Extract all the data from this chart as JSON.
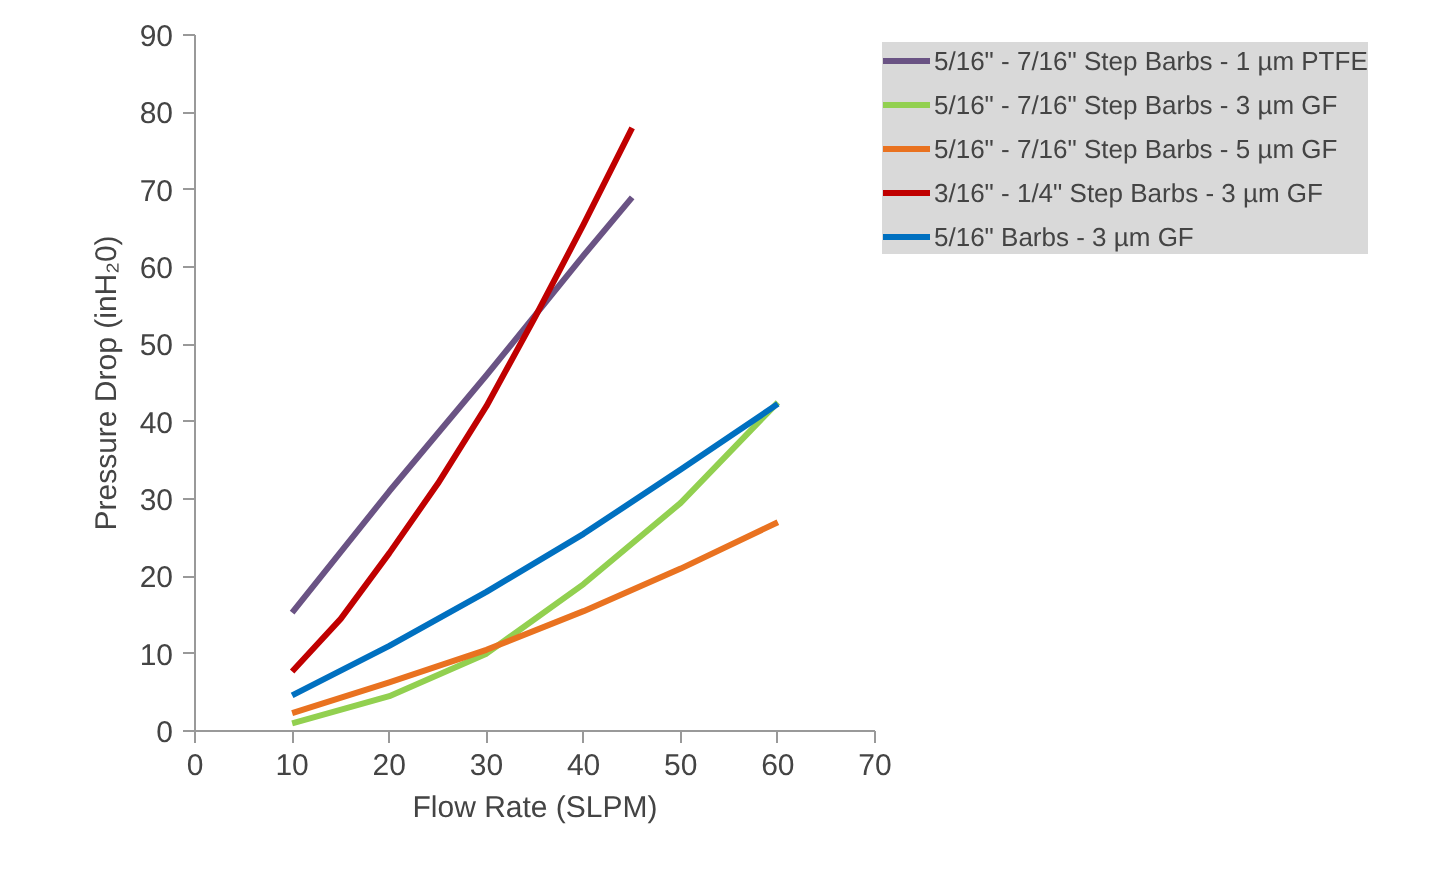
{
  "chart_data": {
    "type": "line",
    "xlabel": "Flow Rate (SLPM)",
    "ylabel": "Pressure Drop (inH₂0)",
    "xlim": [
      0,
      70
    ],
    "ylim": [
      0,
      90
    ],
    "xticks": [
      0,
      10,
      20,
      30,
      40,
      50,
      60,
      70
    ],
    "yticks": [
      0,
      10,
      20,
      30,
      40,
      50,
      60,
      70,
      80,
      90
    ],
    "grid": false,
    "legend": "top right",
    "marker": "none",
    "line_style": "solid",
    "series": [
      {
        "name": "5/16\" - 7/16\" Step Barbs - 1 µm PTFE",
        "color": "#6a5384",
        "x": [
          10,
          20,
          30,
          40,
          45
        ],
        "values": [
          15.3,
          31,
          46,
          61.5,
          69
        ]
      },
      {
        "name": "5/16\" - 7/16\" Step Barbs - 3 µm GF",
        "color": "#92d050",
        "x": [
          10,
          20,
          30,
          40,
          50,
          60
        ],
        "values": [
          1,
          4.5,
          10,
          19,
          29.5,
          42.5
        ]
      },
      {
        "name": "5/16\" - 7/16\" Step Barbs - 5 µm GF",
        "color": "#e97220",
        "x": [
          10,
          20,
          30,
          40,
          50,
          60
        ],
        "values": [
          2.3,
          6.3,
          10.5,
          15.5,
          21,
          27
        ]
      },
      {
        "name": "3/16\" - 1/4\" Step Barbs - 3 µm GF",
        "color": "#c00000",
        "x": [
          10,
          15,
          20,
          25,
          30,
          35,
          40,
          45
        ],
        "values": [
          7.7,
          14.5,
          23,
          32,
          42,
          53.5,
          65.5,
          78
        ]
      },
      {
        "name": "5/16\" Barbs - 3 µm GF",
        "color": "#0070c0",
        "x": [
          10,
          20,
          30,
          40,
          50,
          60
        ],
        "values": [
          4.6,
          11,
          18,
          25.5,
          33.8,
          42.3
        ]
      }
    ]
  }
}
